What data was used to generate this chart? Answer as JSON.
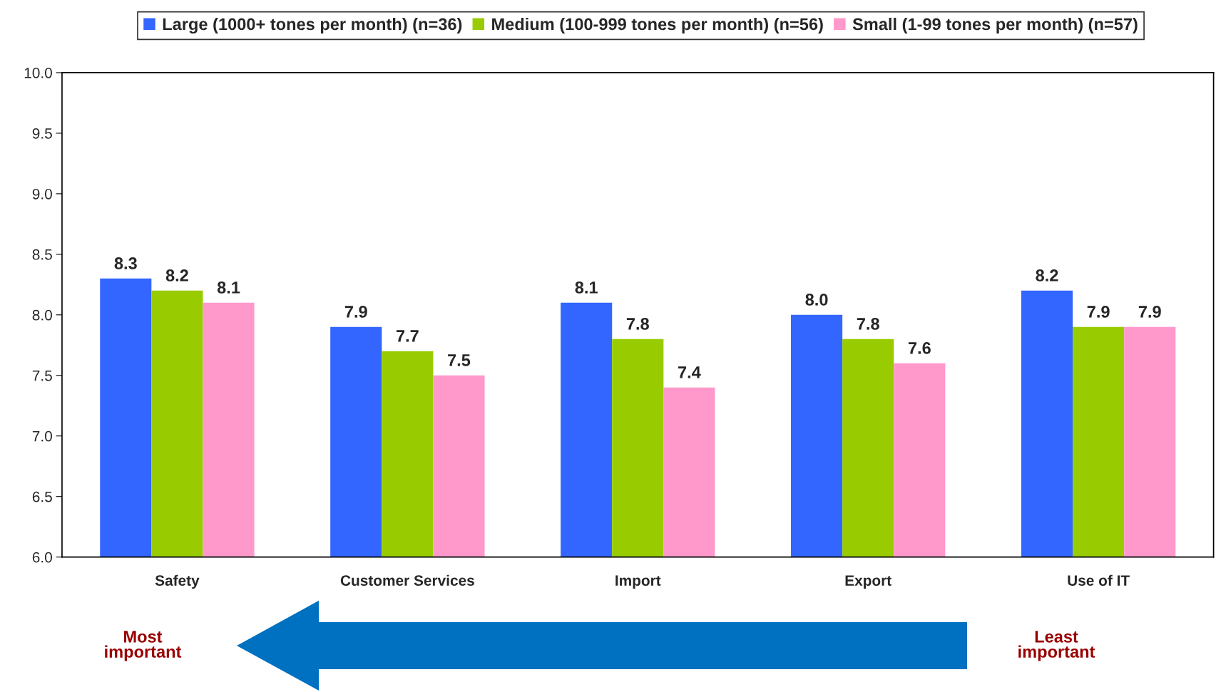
{
  "chart_data": {
    "type": "bar",
    "categories": [
      "Safety",
      "Customer Services",
      "Import",
      "Export",
      "Use of IT"
    ],
    "series": [
      {
        "name": "Large (1000+ tones per month) (n=36)",
        "color": "#3366ff",
        "values": [
          8.3,
          7.9,
          8.1,
          8.0,
          8.2
        ],
        "value_labels": [
          "8.3",
          "7.9",
          "8.1",
          "8.0",
          "8.2"
        ]
      },
      {
        "name": "Medium (100-999 tones per month) (n=56)",
        "color": "#99cc00",
        "values": [
          8.2,
          7.7,
          7.8,
          7.8,
          7.9
        ],
        "value_labels": [
          "8.2",
          "7.7",
          "7.8",
          "7.8",
          "7.9"
        ]
      },
      {
        "name": "Small (1-99 tones per month) (n=57)",
        "color": "#ff99cc",
        "values": [
          8.1,
          7.5,
          7.4,
          7.6,
          7.9
        ],
        "value_labels": [
          "8.1",
          "7.5",
          "7.4",
          "7.6",
          "7.9"
        ]
      }
    ],
    "ylim": [
      6.0,
      10.0
    ],
    "yticks": [
      {
        "value": 6.0,
        "label": "6.0"
      },
      {
        "value": 6.5,
        "label": "6.5"
      },
      {
        "value": 7.0,
        "label": "7.0"
      },
      {
        "value": 7.5,
        "label": "7.5"
      },
      {
        "value": 8.0,
        "label": "8.0"
      },
      {
        "value": 8.5,
        "label": "8.5"
      },
      {
        "value": 9.0,
        "label": "9.0"
      },
      {
        "value": 9.5,
        "label": "9.5"
      },
      {
        "value": 10.0,
        "label": "10.0"
      }
    ],
    "legend": "top",
    "grid": false,
    "annotations": [
      "Most\nimportant",
      "Least\nimportant"
    ]
  }
}
